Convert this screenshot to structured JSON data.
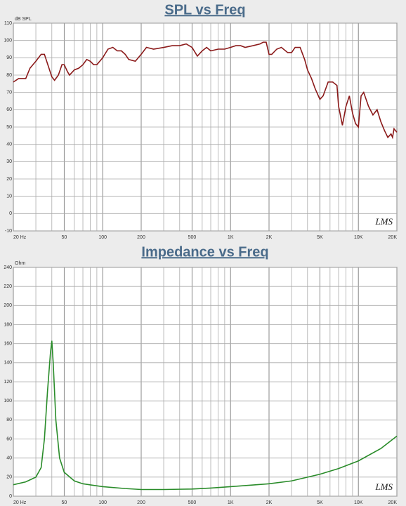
{
  "chart_data": [
    {
      "type": "line",
      "title": "SPL vs Freq",
      "ylabel": "dB SPL",
      "watermark": "LMS",
      "xscale": "log",
      "grid": true,
      "xlim": [
        20,
        20000
      ],
      "ylim": [
        -10,
        110
      ],
      "xticks": [
        {
          "value": 20,
          "label": "20 Hz"
        },
        50,
        100,
        200,
        500,
        {
          "value": 1000,
          "label": "1K"
        },
        {
          "value": 2000,
          "label": "2K"
        },
        {
          "value": 5000,
          "label": "5K"
        },
        {
          "value": 10000,
          "label": "10K"
        },
        {
          "value": 20000,
          "label": "20K"
        }
      ],
      "xgrid_minor": [
        30,
        40,
        60,
        70,
        80,
        90,
        300,
        400,
        600,
        700,
        800,
        900,
        3000,
        4000,
        6000,
        7000,
        8000,
        9000
      ],
      "yticks": [
        -10,
        0,
        10,
        20,
        30,
        40,
        50,
        60,
        70,
        80,
        90,
        100,
        110
      ],
      "x": [
        20,
        22,
        25,
        27,
        30,
        33,
        35,
        38,
        40,
        42,
        45,
        48,
        50,
        53,
        55,
        60,
        65,
        70,
        75,
        80,
        85,
        90,
        100,
        110,
        120,
        130,
        140,
        150,
        160,
        180,
        200,
        220,
        250,
        300,
        350,
        400,
        450,
        500,
        550,
        600,
        650,
        700,
        800,
        900,
        1000,
        1100,
        1200,
        1300,
        1500,
        1700,
        1800,
        1900,
        2000,
        2100,
        2300,
        2500,
        2800,
        3000,
        3200,
        3500,
        3800,
        4000,
        4300,
        4600,
        5000,
        5300,
        5800,
        6300,
        6800,
        7000,
        7500,
        8000,
        8500,
        9000,
        9500,
        10000,
        10500,
        11000,
        12000,
        13000,
        14000,
        15000,
        16000,
        17000,
        18000,
        18500,
        19000,
        20000
      ],
      "series": [
        {
          "color": "#8b1a1a",
          "values": [
            76,
            78,
            78,
            84,
            88,
            92,
            92,
            84,
            79,
            77,
            80,
            86,
            86,
            82,
            80,
            83,
            84,
            86,
            89,
            88,
            86,
            86,
            90,
            95,
            96,
            94,
            94,
            92,
            89,
            88,
            92,
            96,
            95,
            96,
            97,
            97,
            98,
            96,
            91,
            94,
            96,
            94,
            95,
            95,
            96,
            97,
            97,
            96,
            97,
            98,
            99,
            99,
            92,
            92,
            95,
            96,
            93,
            93,
            96,
            96,
            89,
            83,
            78,
            72,
            66,
            68,
            76,
            76,
            74,
            62,
            51,
            62,
            68,
            58,
            52,
            50,
            68,
            70,
            62,
            57,
            60,
            53,
            48,
            44,
            46,
            44,
            49,
            47
          ]
        }
      ]
    },
    {
      "type": "line",
      "title": "Impedance vs Freq",
      "ylabel": "Ohm",
      "watermark": "LMS",
      "xscale": "log",
      "grid": true,
      "xlim": [
        20,
        20000
      ],
      "ylim": [
        0,
        240
      ],
      "xticks": [
        {
          "value": 20,
          "label": "20 Hz"
        },
        50,
        100,
        200,
        500,
        {
          "value": 1000,
          "label": "1K"
        },
        {
          "value": 2000,
          "label": "2K"
        },
        {
          "value": 5000,
          "label": "5K"
        },
        {
          "value": 10000,
          "label": "10K"
        },
        {
          "value": 20000,
          "label": "20K"
        }
      ],
      "xgrid_minor": [
        30,
        40,
        60,
        70,
        80,
        90,
        300,
        400,
        600,
        700,
        800,
        900,
        3000,
        4000,
        6000,
        7000,
        8000,
        9000
      ],
      "yticks": [
        0,
        20,
        40,
        60,
        80,
        100,
        120,
        140,
        160,
        180,
        200,
        220,
        240
      ],
      "x": [
        20,
        25,
        30,
        33,
        35,
        37,
        39,
        40,
        41,
        43,
        46,
        50,
        60,
        70,
        100,
        150,
        200,
        300,
        500,
        700,
        1000,
        2000,
        3000,
        5000,
        7000,
        10000,
        15000,
        20000
      ],
      "series": [
        {
          "color": "#2a8c2a",
          "values": [
            12,
            15,
            20,
            30,
            60,
            110,
            150,
            163,
            140,
            80,
            40,
            25,
            16,
            13,
            10,
            8,
            7,
            7,
            7.5,
            8.5,
            10,
            13,
            16,
            23,
            29,
            37,
            50,
            63
          ]
        }
      ]
    }
  ]
}
